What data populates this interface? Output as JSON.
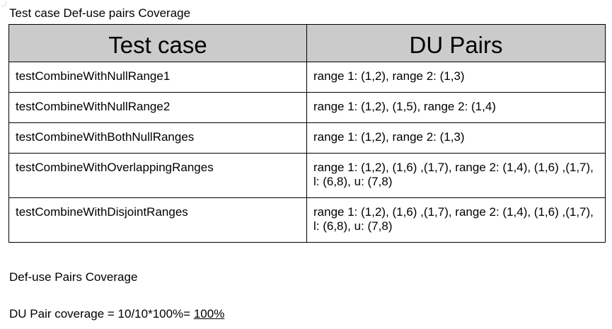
{
  "caption": "Test case Def-use pairs Coverage",
  "table": {
    "headers": [
      "Test case",
      "DU Pairs"
    ],
    "rows": [
      {
        "test_case": "testCombineWithNullRange1",
        "du_pairs": "range 1: (1,2), range 2: (1,3)"
      },
      {
        "test_case": "testCombineWithNullRange2",
        "du_pairs": "range 1: (1,2), (1,5), range 2: (1,4)"
      },
      {
        "test_case": "testCombineWithBothNullRanges",
        "du_pairs": "range 1: (1,2), range 2: (1,3)"
      },
      {
        "test_case": "testCombineWithOverlappingRanges",
        "du_pairs": "range 1: (1,2), (1,6) ,(1,7), range 2: (1,4), (1,6) ,(1,7), l: (6,8), u: (7,8)"
      },
      {
        "test_case": "testCombineWithDisjointRanges",
        "du_pairs": "range 1: (1,2), (1,6) ,(1,7), range 2: (1,4), (1,6) ,(1,7), l: (6,8), u: (7,8)"
      }
    ]
  },
  "summary": {
    "heading": "Def-use Pairs Coverage",
    "formula_text": "DU Pair coverage = 10/10*100%= ",
    "result": "100%"
  }
}
